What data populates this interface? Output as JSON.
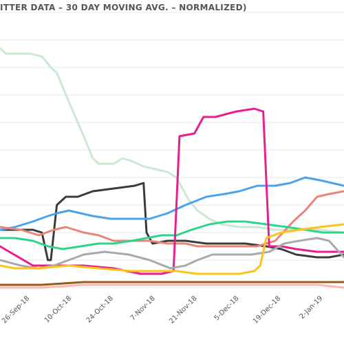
{
  "chart_data": {
    "type": "line",
    "title": "ITTER DATA – 30 DAY MOVING AVG. – NORMALIZED)",
    "x_ticks": [
      "26-Sep-18",
      "10-Oct-18",
      "24-Oct-18",
      "7-Nov-18",
      "21-Nov-18",
      "5-Dec-18",
      "19-Dec-18",
      "2-Jan-19"
    ],
    "x_range": [
      "2018-09-17",
      "2019-01-10"
    ],
    "y_range": [
      0,
      1
    ],
    "grid": true,
    "series": [
      {
        "color": "#cde8d2",
        "points": [
          [
            "2018-09-17",
            0.87
          ],
          [
            "2018-09-19",
            0.85
          ],
          [
            "2018-09-27",
            0.85
          ],
          [
            "2018-10-01",
            0.84
          ],
          [
            "2018-10-04",
            0.8
          ],
          [
            "2018-10-06",
            0.78
          ],
          [
            "2018-10-11",
            0.65
          ],
          [
            "2018-10-15",
            0.55
          ],
          [
            "2018-10-18",
            0.47
          ],
          [
            "2018-10-20",
            0.45
          ],
          [
            "2018-10-25",
            0.45
          ],
          [
            "2018-10-28",
            0.47
          ],
          [
            "2018-10-31",
            0.46
          ],
          [
            "2018-11-04",
            0.44
          ],
          [
            "2018-11-08",
            0.43
          ],
          [
            "2018-11-12",
            0.42
          ],
          [
            "2018-11-15",
            0.4
          ],
          [
            "2018-11-19",
            0.32
          ],
          [
            "2018-11-22",
            0.28
          ],
          [
            "2018-11-26",
            0.25
          ],
          [
            "2018-11-30",
            0.23
          ],
          [
            "2018-12-06",
            0.22
          ],
          [
            "2018-12-12",
            0.22
          ],
          [
            "2018-12-18",
            0.21
          ],
          [
            "2018-12-24",
            0.21
          ],
          [
            "2019-01-02",
            0.21
          ],
          [
            "2019-01-10",
            0.2
          ]
        ]
      },
      {
        "color": "#3b3b3b",
        "points": [
          [
            "2018-09-17",
            0.21
          ],
          [
            "2018-09-25",
            0.21
          ],
          [
            "2018-09-28",
            0.21
          ],
          [
            "2018-10-01",
            0.2
          ],
          [
            "2018-10-03",
            0.1
          ],
          [
            "2018-10-04",
            0.1
          ],
          [
            "2018-10-06",
            0.3
          ],
          [
            "2018-10-09",
            0.33
          ],
          [
            "2018-10-13",
            0.33
          ],
          [
            "2018-10-18",
            0.35
          ],
          [
            "2018-10-25",
            0.36
          ],
          [
            "2018-11-01",
            0.37
          ],
          [
            "2018-11-04",
            0.38
          ],
          [
            "2018-11-05",
            0.2
          ],
          [
            "2018-11-07",
            0.16
          ],
          [
            "2018-11-12",
            0.17
          ],
          [
            "2018-11-18",
            0.17
          ],
          [
            "2018-11-25",
            0.16
          ],
          [
            "2018-12-01",
            0.16
          ],
          [
            "2018-12-08",
            0.16
          ],
          [
            "2018-12-15",
            0.15
          ],
          [
            "2018-12-20",
            0.14
          ],
          [
            "2018-12-25",
            0.12
          ],
          [
            "2019-01-01",
            0.11
          ],
          [
            "2019-01-05",
            0.11
          ],
          [
            "2019-01-10",
            0.12
          ]
        ]
      },
      {
        "color": "#4aa3ea",
        "points": [
          [
            "2018-09-17",
            0.21
          ],
          [
            "2018-09-22",
            0.22
          ],
          [
            "2018-09-28",
            0.24
          ],
          [
            "2018-10-03",
            0.26
          ],
          [
            "2018-10-06",
            0.27
          ],
          [
            "2018-10-10",
            0.28
          ],
          [
            "2018-10-14",
            0.27
          ],
          [
            "2018-10-18",
            0.26
          ],
          [
            "2018-10-24",
            0.25
          ],
          [
            "2018-10-31",
            0.25
          ],
          [
            "2018-11-06",
            0.25
          ],
          [
            "2018-11-12",
            0.27
          ],
          [
            "2018-11-18",
            0.3
          ],
          [
            "2018-11-25",
            0.33
          ],
          [
            "2018-12-01",
            0.34
          ],
          [
            "2018-12-06",
            0.35
          ],
          [
            "2018-12-12",
            0.37
          ],
          [
            "2018-12-18",
            0.37
          ],
          [
            "2018-12-23",
            0.38
          ],
          [
            "2018-12-28",
            0.4
          ],
          [
            "2019-01-02",
            0.39
          ],
          [
            "2019-01-06",
            0.38
          ],
          [
            "2019-01-10",
            0.37
          ]
        ]
      },
      {
        "color": "#e8847a",
        "points": [
          [
            "2018-09-17",
            0.22
          ],
          [
            "2018-09-24",
            0.21
          ],
          [
            "2018-09-30",
            0.19
          ],
          [
            "2018-10-05",
            0.21
          ],
          [
            "2018-10-09",
            0.22
          ],
          [
            "2018-10-15",
            0.2
          ],
          [
            "2018-10-20",
            0.19
          ],
          [
            "2018-10-25",
            0.17
          ],
          [
            "2018-10-31",
            0.17
          ],
          [
            "2018-11-06",
            0.17
          ],
          [
            "2018-11-12",
            0.16
          ],
          [
            "2018-11-18",
            0.16
          ],
          [
            "2018-11-22",
            0.15
          ],
          [
            "2018-11-28",
            0.15
          ],
          [
            "2018-12-04",
            0.15
          ],
          [
            "2018-12-12",
            0.15
          ],
          [
            "2018-12-18",
            0.17
          ],
          [
            "2018-12-24",
            0.24
          ],
          [
            "2018-12-28",
            0.28
          ],
          [
            "2019-01-01",
            0.33
          ],
          [
            "2019-01-05",
            0.34
          ],
          [
            "2019-01-10",
            0.35
          ]
        ]
      },
      {
        "color": "#2dd48a",
        "points": [
          [
            "2018-09-17",
            0.18
          ],
          [
            "2018-09-22",
            0.18
          ],
          [
            "2018-09-28",
            0.17
          ],
          [
            "2018-10-03",
            0.15
          ],
          [
            "2018-10-08",
            0.14
          ],
          [
            "2018-10-14",
            0.15
          ],
          [
            "2018-10-20",
            0.16
          ],
          [
            "2018-10-25",
            0.16
          ],
          [
            "2018-10-31",
            0.17
          ],
          [
            "2018-11-05",
            0.18
          ],
          [
            "2018-11-10",
            0.19
          ],
          [
            "2018-11-15",
            0.19
          ],
          [
            "2018-11-20",
            0.21
          ],
          [
            "2018-11-26",
            0.23
          ],
          [
            "2018-12-02",
            0.24
          ],
          [
            "2018-12-08",
            0.24
          ],
          [
            "2018-12-15",
            0.23
          ],
          [
            "2018-12-22",
            0.22
          ],
          [
            "2018-12-28",
            0.21
          ],
          [
            "2019-01-03",
            0.2
          ],
          [
            "2019-01-10",
            0.2
          ]
        ]
      },
      {
        "color": "#e91e8c",
        "points": [
          [
            "2018-09-17",
            0.15
          ],
          [
            "2018-09-28",
            0.08
          ],
          [
            "2018-10-05",
            0.08
          ],
          [
            "2018-10-15",
            0.08
          ],
          [
            "2018-10-25",
            0.07
          ],
          [
            "2018-11-03",
            0.05
          ],
          [
            "2018-11-10",
            0.05
          ],
          [
            "2018-11-14",
            0.06
          ],
          [
            "2018-11-16",
            0.55
          ],
          [
            "2018-11-21",
            0.56
          ],
          [
            "2018-11-24",
            0.62
          ],
          [
            "2018-11-28",
            0.62
          ],
          [
            "2018-12-05",
            0.64
          ],
          [
            "2018-12-11",
            0.65
          ],
          [
            "2018-12-14",
            0.64
          ],
          [
            "2018-12-16",
            0.15
          ],
          [
            "2018-12-20",
            0.15
          ],
          [
            "2018-12-25",
            0.14
          ],
          [
            "2019-01-01",
            0.13
          ],
          [
            "2019-01-10",
            0.13
          ]
        ]
      },
      {
        "color": "#a8a8b0",
        "points": [
          [
            "2018-09-17",
            0.1
          ],
          [
            "2018-09-24",
            0.08
          ],
          [
            "2018-09-30",
            0.07
          ],
          [
            "2018-10-05",
            0.08
          ],
          [
            "2018-10-10",
            0.1
          ],
          [
            "2018-10-15",
            0.12
          ],
          [
            "2018-10-22",
            0.13
          ],
          [
            "2018-10-30",
            0.12
          ],
          [
            "2018-11-06",
            0.1
          ],
          [
            "2018-11-13",
            0.07
          ],
          [
            "2018-11-18",
            0.08
          ],
          [
            "2018-11-22",
            0.1
          ],
          [
            "2018-11-27",
            0.12
          ],
          [
            "2018-12-03",
            0.12
          ],
          [
            "2018-12-10",
            0.12
          ],
          [
            "2018-12-16",
            0.13
          ],
          [
            "2018-12-21",
            0.16
          ],
          [
            "2018-12-26",
            0.17
          ],
          [
            "2019-01-01",
            0.18
          ],
          [
            "2019-01-05",
            0.17
          ],
          [
            "2019-01-10",
            0.11
          ]
        ]
      },
      {
        "color": "#ffc21a",
        "points": [
          [
            "2018-09-17",
            0.08
          ],
          [
            "2018-09-22",
            0.07
          ],
          [
            "2018-09-30",
            0.07
          ],
          [
            "2018-10-10",
            0.08
          ],
          [
            "2018-10-20",
            0.07
          ],
          [
            "2018-10-31",
            0.06
          ],
          [
            "2018-11-08",
            0.06
          ],
          [
            "2018-11-15",
            0.06
          ],
          [
            "2018-11-22",
            0.05
          ],
          [
            "2018-11-30",
            0.05
          ],
          [
            "2018-12-06",
            0.05
          ],
          [
            "2018-12-11",
            0.06
          ],
          [
            "2018-12-13",
            0.08
          ],
          [
            "2018-12-15",
            0.18
          ],
          [
            "2018-12-20",
            0.2
          ],
          [
            "2018-12-26",
            0.21
          ],
          [
            "2019-01-02",
            0.22
          ],
          [
            "2019-01-10",
            0.23
          ]
        ]
      },
      {
        "color": "#9a5a14",
        "points": [
          [
            "2018-09-17",
            0.01
          ],
          [
            "2018-10-01",
            0.01
          ],
          [
            "2018-10-15",
            0.02
          ],
          [
            "2018-11-01",
            0.02
          ],
          [
            "2018-11-15",
            0.02
          ],
          [
            "2018-12-01",
            0.02
          ],
          [
            "2018-12-15",
            0.02
          ],
          [
            "2019-01-01",
            0.02
          ],
          [
            "2019-01-10",
            0.02
          ]
        ]
      },
      {
        "color": "#f6b9b4",
        "points": [
          [
            "2018-09-17",
            0.0
          ],
          [
            "2018-10-01",
            0.0
          ],
          [
            "2018-10-15",
            0.01
          ],
          [
            "2018-11-01",
            0.01
          ],
          [
            "2018-11-15",
            0.01
          ],
          [
            "2018-12-01",
            0.01
          ],
          [
            "2018-12-15",
            0.01
          ],
          [
            "2019-01-01",
            0.01
          ],
          [
            "2019-01-10",
            0.0
          ]
        ]
      }
    ]
  }
}
